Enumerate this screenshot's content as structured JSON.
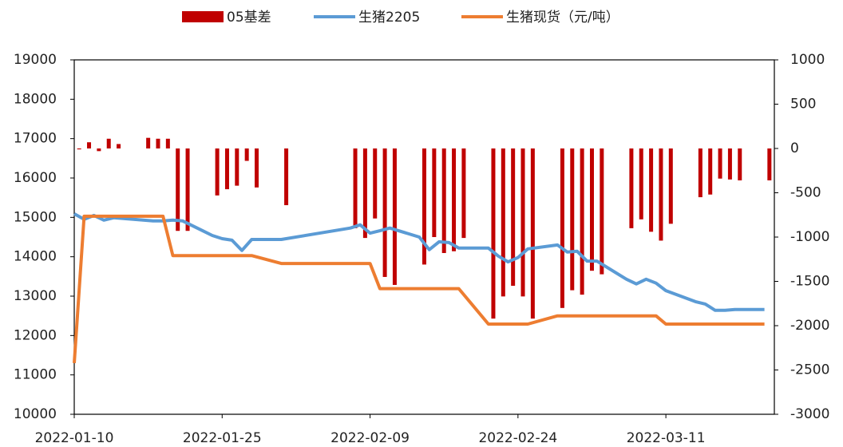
{
  "chart_data": {
    "type": "combo",
    "x": [
      "2022-01-10",
      "2022-01-11",
      "2022-01-12",
      "2022-01-13",
      "2022-01-14",
      "2022-01-17",
      "2022-01-18",
      "2022-01-19",
      "2022-01-20",
      "2022-01-21",
      "2022-01-24",
      "2022-01-25",
      "2022-01-26",
      "2022-01-27",
      "2022-01-28",
      "2022-01-31",
      "2022-02-07",
      "2022-02-08",
      "2022-02-09",
      "2022-02-10",
      "2022-02-11",
      "2022-02-14",
      "2022-02-15",
      "2022-02-16",
      "2022-02-17",
      "2022-02-18",
      "2022-02-21",
      "2022-02-22",
      "2022-02-23",
      "2022-02-24",
      "2022-02-25",
      "2022-02-28",
      "2022-03-01",
      "2022-03-02",
      "2022-03-03",
      "2022-03-04",
      "2022-03-07",
      "2022-03-08",
      "2022-03-09",
      "2022-03-10",
      "2022-03-11",
      "2022-03-14",
      "2022-03-15",
      "2022-03-16",
      "2022-03-17",
      "2022-03-18",
      "2022-03-21"
    ],
    "series": [
      {
        "name": "05基差",
        "type": "bar",
        "axis": "y2",
        "color": "#c00000",
        "values": [
          -10,
          70,
          -30,
          110,
          50,
          120,
          110,
          110,
          -930,
          -930,
          -530,
          -460,
          -420,
          -140,
          -440,
          -640,
          -900,
          -1010,
          -790,
          -1450,
          -1540,
          -1310,
          -1000,
          -1180,
          -1160,
          -1010,
          -1920,
          -1670,
          -1550,
          -1670,
          -1920,
          -1800,
          -1600,
          -1650,
          -1380,
          -1420,
          -900,
          -800,
          -940,
          -1040,
          -850,
          -550,
          -520,
          -340,
          -350,
          -360,
          -360
        ]
      },
      {
        "name": "生猪2205",
        "type": "line",
        "color": "#5b9bd5",
        "values": [
          15090,
          14950,
          15050,
          14930,
          14990,
          14930,
          14910,
          14910,
          14930,
          14910,
          14540,
          14460,
          14420,
          14160,
          14440,
          14440,
          14730,
          14810,
          14600,
          14660,
          14730,
          14500,
          14180,
          14380,
          14360,
          14220,
          14220,
          14020,
          13870,
          13980,
          14200,
          14300,
          14120,
          14140,
          13890,
          13890,
          13430,
          13310,
          13430,
          13330,
          13140,
          12860,
          12800,
          12640,
          12640,
          12660,
          12660
        ]
      },
      {
        "name": "生猪现货（元/吨）",
        "type": "line",
        "color": "#ed7d31",
        "values": [
          11300,
          15030,
          15030,
          15030,
          15030,
          15030,
          15030,
          15030,
          14030,
          14030,
          14030,
          14030,
          14030,
          14030,
          14030,
          13830,
          13830,
          13830,
          13830,
          13190,
          13190,
          13190,
          13190,
          13190,
          13190,
          13190,
          12290,
          12290,
          12290,
          12290,
          12290,
          12500,
          12500,
          12500,
          12500,
          12500,
          12500,
          12500,
          12500,
          12500,
          12290,
          12290,
          12290,
          12290,
          12290,
          12290,
          12290
        ]
      }
    ],
    "xlim": [
      "2022-01-10",
      "2022-03-22"
    ],
    "xticks": [
      "2022-01-10",
      "2022-01-25",
      "2022-02-09",
      "2022-02-24",
      "2022-03-11"
    ],
    "ylim": [
      10000,
      19000
    ],
    "yticks": [
      10000,
      11000,
      12000,
      13000,
      14000,
      15000,
      16000,
      17000,
      18000,
      19000
    ],
    "y2lim": [
      -3000,
      1000
    ],
    "y2ticks": [
      -3000,
      -2500,
      -2000,
      -1500,
      -1000,
      -500,
      0,
      500,
      1000
    ]
  }
}
